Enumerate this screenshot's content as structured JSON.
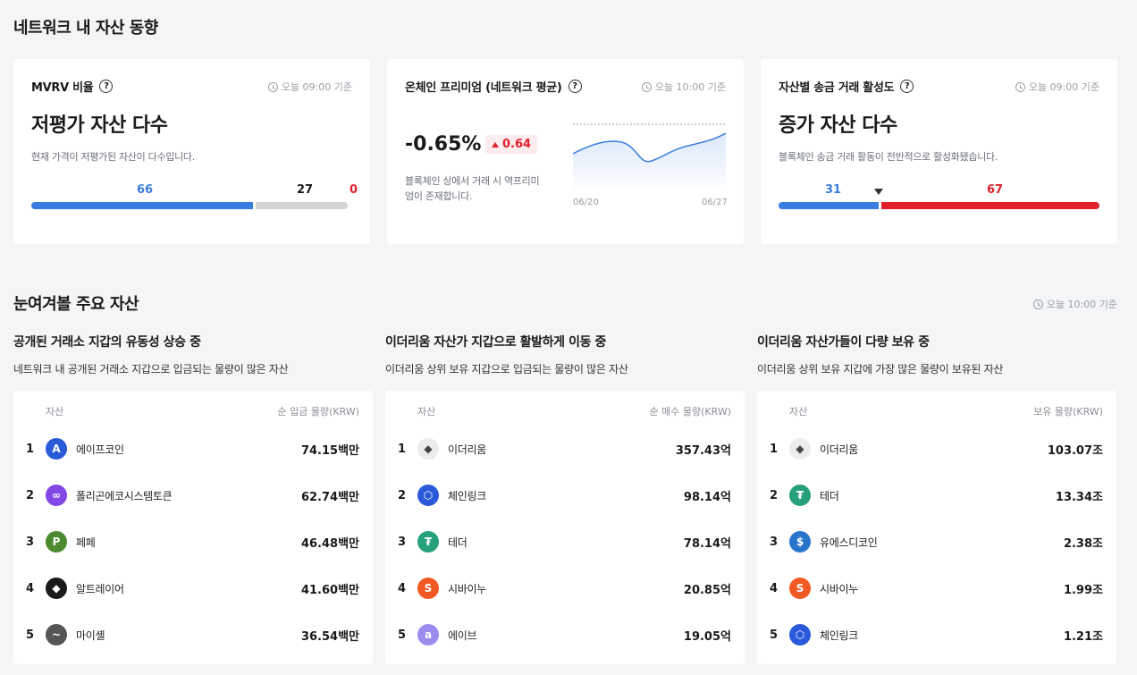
{
  "section1": {
    "title": "네트워크 내 자산 동향"
  },
  "mvrv": {
    "title": "MVRV 비율",
    "updated": "오늘 09:00 기준",
    "headline": "저평가 자산 다수",
    "desc": "현재 가격이 저평가된 자산이 다수입니다.",
    "undervalued": 66,
    "neutral": 27,
    "overvalued": 0,
    "undervalued_label": "66",
    "neutral_label": "27",
    "overvalued_label": "0"
  },
  "premium": {
    "title": "온체인 프리미엄 (네트워크 평균)",
    "updated": "오늘 10:00 기준",
    "value": "-0.65%",
    "change": "0.64",
    "desc": "블록체인 상에서 거래 시 역프리미엄이 존재합니다.",
    "start_date": "06/20",
    "end_date": "06/27"
  },
  "transfer": {
    "title": "자산별 송금 거래 활성도",
    "updated": "오늘 09:00 기준",
    "headline": "증가 자산 다수",
    "desc": "블록체인 송금 거래 활동이 전반적으로 활성화됐습니다.",
    "decrease": 31,
    "increase": 67,
    "decrease_label": "31",
    "increase_label": "67"
  },
  "section2": {
    "title": "눈여겨볼 주요 자산",
    "updated": "오늘 10:00 기준"
  },
  "lists": [
    {
      "title": "공개된 거래소 지갑의 유동성 상승 중",
      "subtitle": "네트워크 내 공개된 거래소 지갑으로 입금되는 물량이 많은 자산",
      "col_asset": "자산",
      "col_value": "순 입금 물량(KRW)",
      "rows": [
        {
          "rank": "1",
          "name": "에이프코인",
          "value": "74.15백만",
          "icon": "apecoin-icon",
          "color": "#2a5ad8"
        },
        {
          "rank": "2",
          "name": "폴리곤에코시스템토큰",
          "value": "62.74백만",
          "icon": "polygon-icon",
          "color": "#8247e5"
        },
        {
          "rank": "3",
          "name": "페페",
          "value": "46.48백만",
          "icon": "pepe-icon",
          "color": "#4c8a2f"
        },
        {
          "rank": "4",
          "name": "알트레이어",
          "value": "41.60백만",
          "icon": "altlayer-icon",
          "color": "#1a1a1a"
        },
        {
          "rank": "5",
          "name": "마이셸",
          "value": "36.54백만",
          "icon": "myshell-icon",
          "color": "#555555"
        }
      ]
    },
    {
      "title": "이더리움 자산가 지갑으로 활발하게 이동 중",
      "subtitle": "이더리움 상위 보유 지갑으로 입금되는 물량이 많은 자산",
      "col_asset": "자산",
      "col_value": "순 매수 물량(KRW)",
      "rows": [
        {
          "rank": "1",
          "name": "이더리움",
          "value": "357.43억",
          "icon": "ethereum-icon",
          "color": "#ececec"
        },
        {
          "rank": "2",
          "name": "체인링크",
          "value": "98.14억",
          "icon": "chainlink-icon",
          "color": "#2a5ada"
        },
        {
          "rank": "3",
          "name": "테더",
          "value": "78.14억",
          "icon": "tether-icon",
          "color": "#26a17b"
        },
        {
          "rank": "4",
          "name": "시바이누",
          "value": "20.85억",
          "icon": "shiba-icon",
          "color": "#f05a22"
        },
        {
          "rank": "5",
          "name": "에이브",
          "value": "19.05억",
          "icon": "aave-icon",
          "color": "#9c8cf0"
        }
      ]
    },
    {
      "title": "이더리움 자산가들이 다량 보유 중",
      "subtitle": "이더리움 상위 보유 지갑에 가장 많은 물량이 보유된 자산",
      "col_asset": "자산",
      "col_value": "보유 물량(KRW)",
      "rows": [
        {
          "rank": "1",
          "name": "이더리움",
          "value": "103.07조",
          "icon": "ethereum-icon",
          "color": "#ececec"
        },
        {
          "rank": "2",
          "name": "테더",
          "value": "13.34조",
          "icon": "tether-icon",
          "color": "#26a17b"
        },
        {
          "rank": "3",
          "name": "유에스디코인",
          "value": "2.38조",
          "icon": "usdc-icon",
          "color": "#2775ca"
        },
        {
          "rank": "4",
          "name": "시바이누",
          "value": "1.99조",
          "icon": "shiba-icon",
          "color": "#f05a22"
        },
        {
          "rank": "5",
          "name": "체인링크",
          "value": "1.21조",
          "icon": "chainlink-icon",
          "color": "#2a5ada"
        }
      ]
    }
  ]
}
